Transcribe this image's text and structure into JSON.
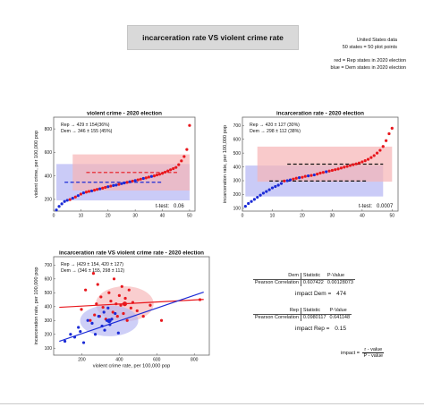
{
  "header": {
    "title": "incarceration rate VS violent crime rate",
    "info_lines": [
      "United States data",
      "50 states = 50 plot points"
    ],
    "legend_lines": [
      "red = Rep states in 2020 election",
      "blue = Dem states in 2020 election"
    ]
  },
  "colors": {
    "rep": "#e8171d",
    "dem": "#1b2bd6",
    "rep_band": "#f6b3b5",
    "dem_band": "#b3b5f3"
  },
  "stats": {
    "dem": {
      "label": "Dem",
      "h1": "Statistic",
      "h2": "P-Value",
      "row_label": "Pearson Correlation",
      "statistic": "0.607422",
      "pvalue": "0.00128073"
    },
    "rep": {
      "label": "Rep",
      "h1": "Statistic",
      "h2": "P-Value",
      "row_label": "Pearson Correlation",
      "statistic": "0.0980117",
      "pvalue": "0.641148"
    },
    "impact_dem_label": "impact Dem =",
    "impact_dem_value": "474",
    "impact_rep_label": "impact Rep =",
    "impact_rep_value": "0.15",
    "impact_formula_label": "impact =",
    "impact_numerator": "r - value",
    "impact_denominator": "P - value"
  },
  "chart_data": [
    {
      "type": "scatter",
      "title": "violent crime -  2020 election",
      "ylabel": "violent crime, per 100,000 pop",
      "xlim": [
        0,
        52
      ],
      "ylim": [
        100,
        900
      ],
      "x_ticks": [
        0,
        10,
        20,
        30,
        40,
        50
      ],
      "y_ticks": [
        200,
        400,
        600,
        800
      ],
      "annotation_rep": "Rep → 429 ± 154(36%)",
      "annotation_dem": "Dem → 346 ± 155 (45%)",
      "ttest_label": "t-test:",
      "ttest_value": "0.06",
      "bands": [
        {
          "party": "dem",
          "x": [
            1,
            50
          ],
          "y": [
            191,
            501
          ]
        },
        {
          "party": "rep",
          "x": [
            7,
            50
          ],
          "y": [
            275,
            583
          ]
        }
      ],
      "mean_lines": [
        {
          "party": "rep",
          "x": [
            12,
            46
          ],
          "y": 429
        },
        {
          "party": "dem",
          "x": [
            4,
            40
          ],
          "y": 346
        }
      ],
      "series": [
        {
          "name": "Rep",
          "party": "rep",
          "x": [
            6,
            8,
            10,
            12,
            13,
            15,
            16,
            18,
            19,
            21,
            24,
            27,
            29,
            31,
            32,
            34,
            35,
            37,
            38,
            39,
            40,
            41,
            42,
            43,
            44,
            45,
            46,
            47,
            48,
            49,
            50
          ],
          "y": [
            198,
            220,
            245,
            262,
            268,
            278,
            285,
            295,
            302,
            313,
            328,
            345,
            355,
            366,
            372,
            383,
            390,
            400,
            408,
            414,
            422,
            432,
            442,
            452,
            462,
            472,
            495,
            528,
            565,
            625,
            830
          ]
        },
        {
          "name": "Dem",
          "party": "dem",
          "x": [
            1,
            2,
            3,
            4,
            5,
            7,
            9,
            11,
            14,
            17,
            20,
            22,
            23,
            25,
            26,
            28,
            30,
            33,
            36
          ],
          "y": [
            110,
            140,
            162,
            182,
            192,
            210,
            232,
            255,
            272,
            290,
            308,
            318,
            322,
            334,
            340,
            350,
            360,
            378,
            395
          ]
        }
      ]
    },
    {
      "type": "scatter",
      "title": "incarceration rate  -  2020 election",
      "ylabel": "incarceration rate, per 100,000 pop",
      "xlim": [
        0,
        52
      ],
      "ylim": [
        80,
        760
      ],
      "x_ticks": [
        0,
        10,
        20,
        30,
        40,
        50
      ],
      "y_ticks": [
        100,
        200,
        300,
        400,
        500,
        600,
        700
      ],
      "annotation_rep": "Rep → 420 ± 127 (30%)",
      "annotation_dem": "Dem → 298 ± 112 (38%)",
      "ttest_label": "t-test:",
      "ttest_value": "0.0007",
      "bands": [
        {
          "party": "dem",
          "x": [
            1,
            47
          ],
          "y": [
            186,
            410
          ]
        },
        {
          "party": "rep",
          "x": [
            5,
            50
          ],
          "y": [
            293,
            547
          ]
        }
      ],
      "mean_lines": [
        {
          "party": "rep",
          "x": [
            15,
            47
          ],
          "y": 420
        },
        {
          "party": "dem",
          "x": [
            9,
            42
          ],
          "y": 298
        }
      ],
      "series": [
        {
          "name": "Rep",
          "party": "rep",
          "x": [
            14,
            17,
            20,
            23,
            25,
            27,
            29,
            31,
            32,
            33,
            34,
            35,
            36,
            37,
            38,
            39,
            40,
            41,
            42,
            43,
            44,
            45,
            46,
            47,
            48,
            49,
            50,
            21,
            26,
            30,
            18
          ],
          "y": [
            298,
            312,
            325,
            338,
            348,
            360,
            370,
            380,
            385,
            392,
            398,
            404,
            410,
            416,
            422,
            428,
            436,
            445,
            455,
            468,
            482,
            500,
            520,
            548,
            590,
            640,
            680,
            332,
            355,
            375,
            318
          ]
        },
        {
          "name": "Dem",
          "party": "dem",
          "x": [
            1,
            2,
            3,
            4,
            5,
            6,
            7,
            8,
            9,
            10,
            11,
            12,
            13,
            15,
            16,
            19,
            22,
            24,
            28
          ],
          "y": [
            115,
            135,
            150,
            165,
            180,
            195,
            210,
            222,
            235,
            248,
            258,
            268,
            280,
            300,
            306,
            322,
            335,
            342,
            365
          ]
        }
      ]
    },
    {
      "type": "scatter",
      "title": "incarceration rate VS violent crime rate  -  2020 election",
      "xlabel": "violent crime rate, per 100,000 pop",
      "ylabel": "incarceration rate, per 100,000 pop",
      "xlim": [
        50,
        880
      ],
      "ylim": [
        50,
        760
      ],
      "x_ticks": [
        200,
        400,
        600,
        800
      ],
      "y_ticks": [
        100,
        200,
        300,
        400,
        500,
        600,
        700
      ],
      "annotation_rep": "Rep → (429 ± 154, 420 ± 127)",
      "annotation_dem": "Dem → (346 ± 155, 298 ± 112)",
      "ellipses": [
        {
          "party": "rep",
          "cx": 429,
          "cy": 420,
          "rx": 154,
          "ry": 127
        },
        {
          "party": "dem",
          "cx": 346,
          "cy": 298,
          "rx": 155,
          "ry": 112
        }
      ],
      "fit_lines": [
        {
          "party": "rep",
          "x": [
            80,
            850
          ],
          "y": [
            395,
            452
          ]
        },
        {
          "party": "dem",
          "x": [
            80,
            850
          ],
          "y": [
            150,
            505
          ]
        }
      ],
      "centers": [
        {
          "party": "rep",
          "x": 429,
          "y": 420
        },
        {
          "party": "dem",
          "x": 346,
          "y": 298
        }
      ],
      "series": [
        {
          "name": "Rep",
          "party": "rep",
          "x": [
            198,
            220,
            245,
            262,
            268,
            278,
            285,
            295,
            302,
            313,
            328,
            345,
            355,
            366,
            372,
            383,
            390,
            400,
            408,
            414,
            422,
            432,
            442,
            452,
            462,
            472,
            495,
            528,
            565,
            625,
            830
          ],
          "y": [
            380,
            520,
            300,
            640,
            340,
            420,
            560,
            330,
            470,
            395,
            310,
            500,
            440,
            360,
            600,
            420,
            330,
            480,
            410,
            545,
            350,
            460,
            300,
            520,
            390,
            430,
            370,
            330,
            410,
            300,
            450
          ]
        },
        {
          "name": "Dem",
          "party": "dem",
          "x": [
            110,
            140,
            162,
            182,
            192,
            210,
            232,
            255,
            272,
            290,
            308,
            318,
            322,
            334,
            340,
            350,
            360,
            378,
            395
          ],
          "y": [
            150,
            200,
            180,
            250,
            220,
            140,
            300,
            280,
            200,
            330,
            260,
            360,
            230,
            300,
            390,
            270,
            310,
            350,
            210
          ]
        }
      ]
    }
  ]
}
